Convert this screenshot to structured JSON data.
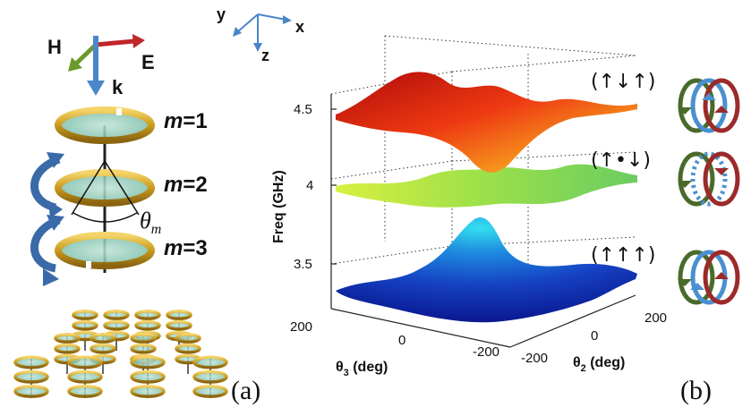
{
  "panel_a": {
    "field_labels": {
      "h": "H",
      "e": "E",
      "k": "k"
    },
    "layer_labels": [
      {
        "m": "m",
        "eq": "=1"
      },
      {
        "m": "m",
        "eq": "=2"
      },
      {
        "m": "m",
        "eq": "=3"
      }
    ],
    "theta": {
      "sym": "θ",
      "sub": "m"
    },
    "letter": "(a)"
  },
  "coord_axes": {
    "y": "y",
    "x": "x",
    "z": "z"
  },
  "chart_data": {
    "type": "surface",
    "zlabel": "Freq (GHz)",
    "zticks": [
      "4.5",
      "4",
      "3.5"
    ],
    "x_axis": {
      "label_main": "θ",
      "label_sub": "3",
      "label_unit": " (deg)",
      "ticks": [
        "200",
        "0",
        "-200"
      ]
    },
    "y_axis": {
      "label_main": "θ",
      "label_sub": "2",
      "label_unit": " (deg)",
      "ticks": [
        "200",
        "0",
        "-200"
      ]
    },
    "series": [
      {
        "name": "(↑↓↑)",
        "approx_freq_range_ghz": [
          4.2,
          4.75
        ]
      },
      {
        "name": "(↑•↓)",
        "approx_freq_range_ghz": [
          3.9,
          4.15
        ]
      },
      {
        "name": "(↑↑↑)",
        "approx_freq_range_ghz": [
          3.35,
          3.8
        ]
      }
    ],
    "colormap": [
      "#0a1aa0",
      "#1e6ad8",
      "#2bd4e0",
      "#c8f03c",
      "#f7c21e",
      "#ee5a12",
      "#b00a0a"
    ]
  },
  "panel_b": {
    "letter": "(b)",
    "ring_colors": {
      "green": "#4a6a2a",
      "blue": "#4a90d0",
      "red": "#9c2a2a"
    }
  }
}
